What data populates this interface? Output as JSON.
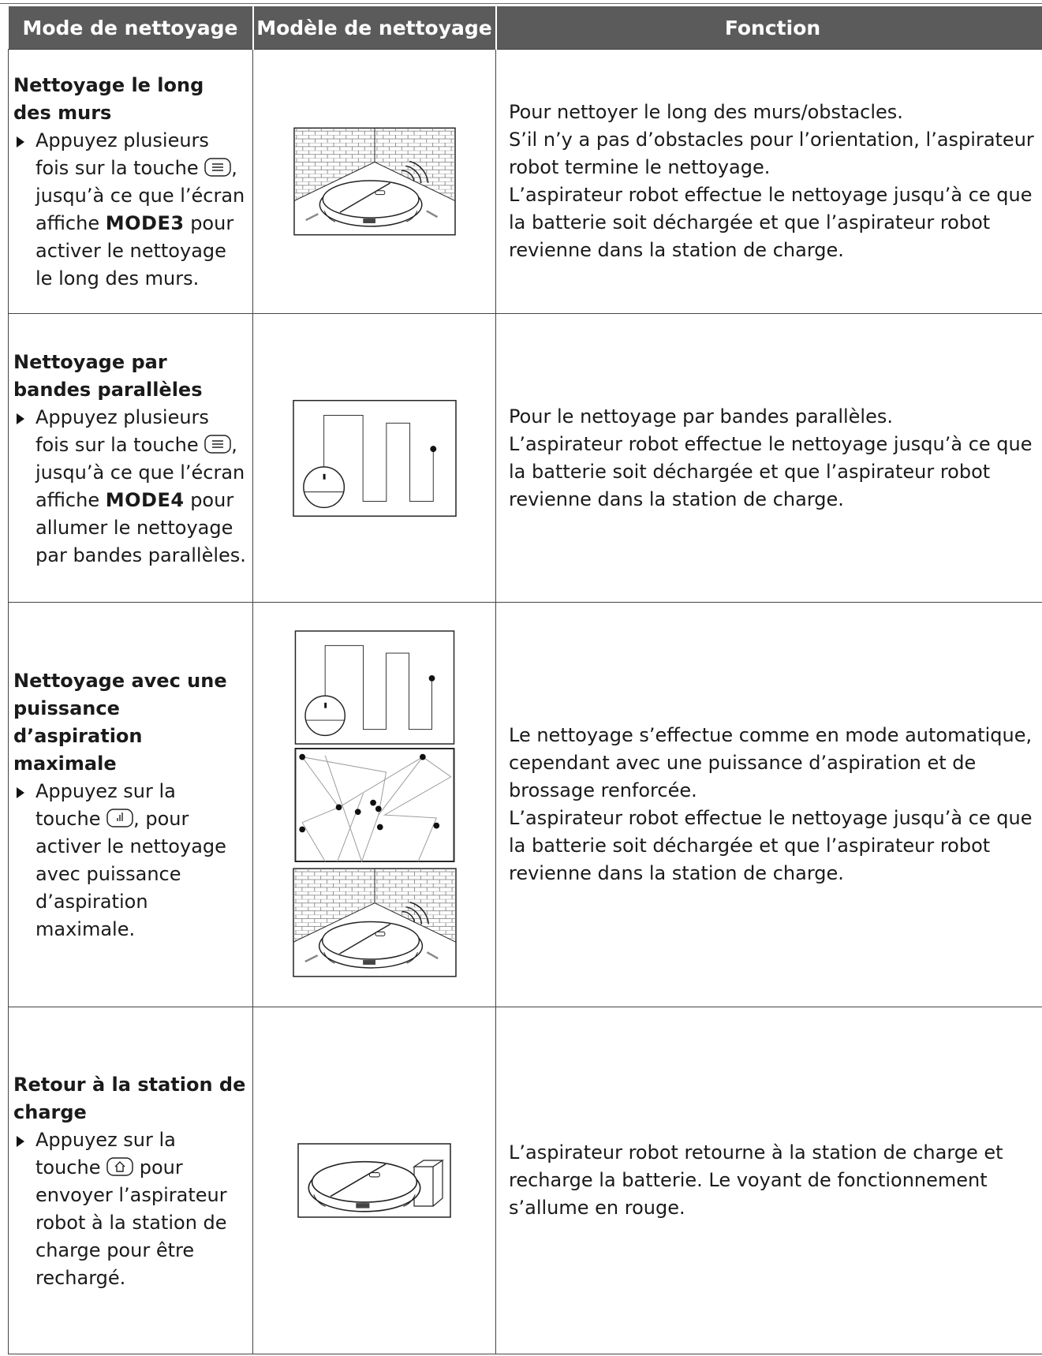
{
  "header": {
    "columns": [
      "Mode de nettoyage",
      "Modèle de nettoyage",
      "Fonction"
    ]
  },
  "rows": [
    {
      "mode": {
        "title": "Nettoyage le long des murs",
        "instruction": {
          "before": "Appuyez plusieurs fois sur la touche",
          "middle": ", jusqu’à ce que l’écran affiche",
          "code": "MODE3",
          "after": "pour activer le nettoyage le long des murs."
        }
      },
      "function": [
        "Pour nettoyer le long des murs/obstacles.",
        "S’il n’y a pas d’obstacles pour l’orientation, l’aspirateur robot termine le nettoyage.",
        "L’aspirateur robot effectue le nettoyage jusqu’à ce que la batterie soit déchargée et que l’aspirateur robot revienne dans la station de charge."
      ]
    },
    {
      "mode": {
        "title": "Nettoyage par bandes parallèles",
        "instruction": {
          "before": "Appuyez plusieurs fois sur la touche",
          "middle": ", jusqu’à ce que l’écran affiche",
          "code": "MODE4",
          "after": "pour allumer le nettoyage par bandes parallèles."
        }
      },
      "function": [
        "Pour le nettoyage par bandes parallèles.",
        "L’aspirateur robot effectue le nettoyage jusqu’à ce que la batterie soit déchargée et que l’aspirateur robot revienne dans la station de charge."
      ]
    },
    {
      "mode": {
        "title": "Nettoyage avec une puissance d’aspiration maximale",
        "instruction": {
          "before": "Appuyez sur la touche",
          "after": ", pour activer le nettoyage avec puissance d’aspiration maximale."
        }
      },
      "function": [
        "Le nettoyage s’effectue comme en mode automatique, cependant avec une puissance d’aspiration et de brossage renforcée.",
        "L’aspirateur robot effectue le nettoyage jusqu’à ce que la batterie soit déchargée et que l’aspirateur robot revienne dans la station de charge."
      ]
    },
    {
      "mode": {
        "title": "Retour à la station de charge",
        "instruction": {
          "before": "Appuyez sur la touche",
          "after": "pour envoyer l’aspirateur robot à la station de charge pour être rechargé."
        }
      },
      "function": [
        "L’aspirateur robot retourne à la station de charge et recharge la batterie. Le voyant de fonctionnement s’allume en rouge."
      ]
    }
  ]
}
